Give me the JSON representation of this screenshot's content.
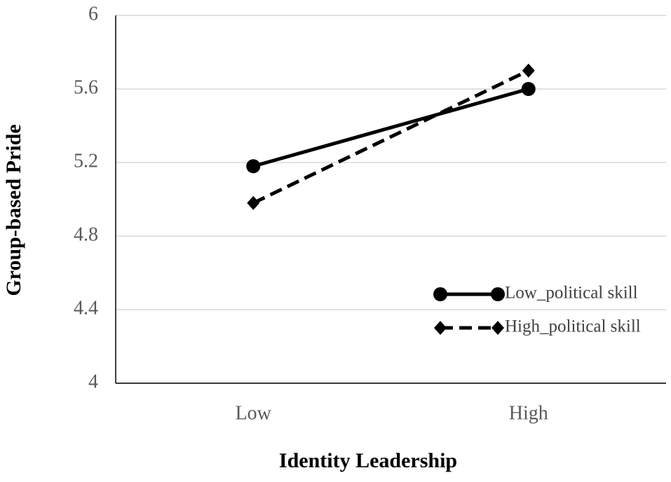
{
  "chart_data": {
    "type": "line",
    "x_label": "Identity Leadership",
    "y_label": "Group-based Pride",
    "categories": [
      "Low",
      "High"
    ],
    "series": [
      {
        "name": "Low_political skill",
        "color": "#000000",
        "values": [
          5.18,
          5.6
        ],
        "marker": "circle",
        "dash": "solid"
      },
      {
        "name": "High_political skill",
        "color": "#000000",
        "values": [
          4.98,
          5.7
        ],
        "marker": "diamond",
        "dash": "dashed"
      }
    ],
    "ylim": [
      4,
      6
    ],
    "yticks": [
      4,
      4.4,
      4.8,
      5.2,
      5.6,
      6
    ],
    "grid": true,
    "legend": "lower right"
  }
}
